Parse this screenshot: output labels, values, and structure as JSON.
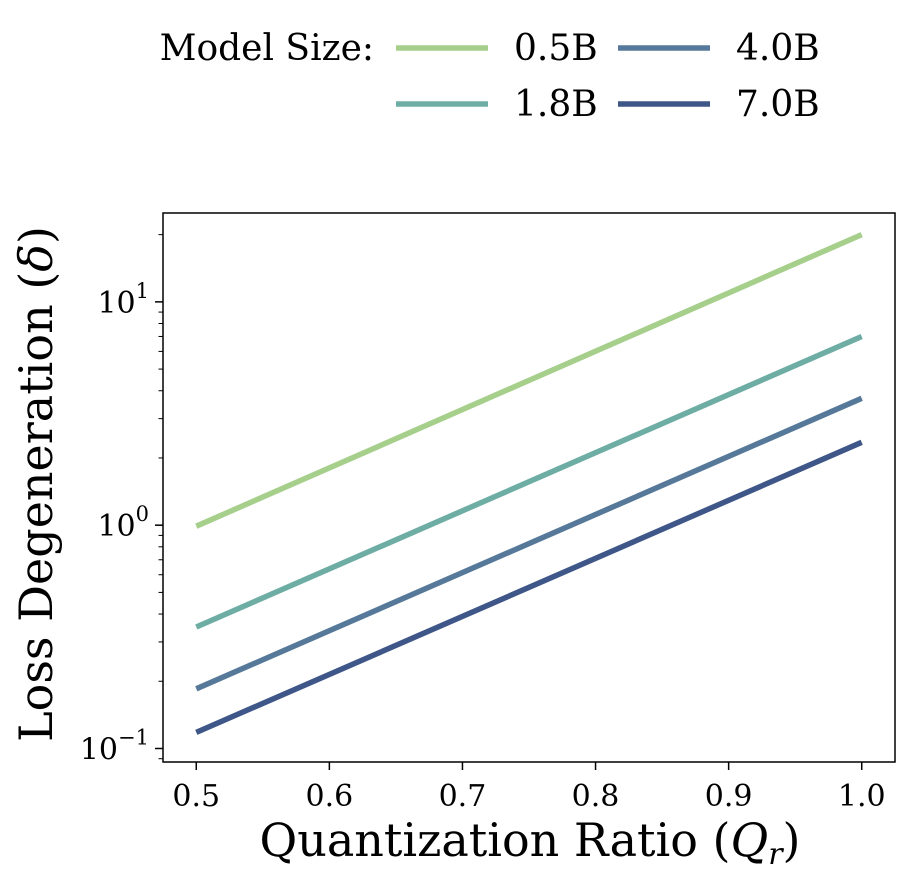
{
  "chart_data": {
    "type": "line",
    "xlabel": "Quantization Ratio",
    "xlabel_symbol": "Q",
    "xlabel_subscript": "r",
    "ylabel": "Loss Degeneration",
    "ylabel_symbol": "δ",
    "yscale": "log",
    "xlim": [
      0.475,
      1.025
    ],
    "ylim": [
      0.087,
      25
    ],
    "xticks": [
      "0.5",
      "0.6",
      "0.7",
      "0.8",
      "0.9",
      "1.0"
    ],
    "xtick_values": [
      0.5,
      0.6,
      0.7,
      0.8,
      0.9,
      1.0
    ],
    "yticks": [
      {
        "value": 10,
        "base": "10",
        "exp": "1"
      },
      {
        "value": 1,
        "base": "10",
        "exp": "0"
      },
      {
        "value": 0.1,
        "base": "10",
        "exp": "−1"
      }
    ],
    "grid": false,
    "legend": {
      "title": "Model Size:",
      "placement": "top",
      "columns": 2
    },
    "series": [
      {
        "name": "0.5B",
        "color": "#a5cf8a",
        "x": [
          0.5,
          1.0
        ],
        "y": [
          0.99,
          20.0
        ]
      },
      {
        "name": "1.8B",
        "color": "#6dada4",
        "x": [
          0.5,
          1.0
        ],
        "y": [
          0.35,
          7.0
        ]
      },
      {
        "name": "4.0B",
        "color": "#56799a",
        "x": [
          0.5,
          1.0
        ],
        "y": [
          0.185,
          3.7
        ]
      },
      {
        "name": "7.0B",
        "color": "#3e5688",
        "x": [
          0.5,
          1.0
        ],
        "y": [
          0.118,
          2.35
        ]
      }
    ]
  }
}
